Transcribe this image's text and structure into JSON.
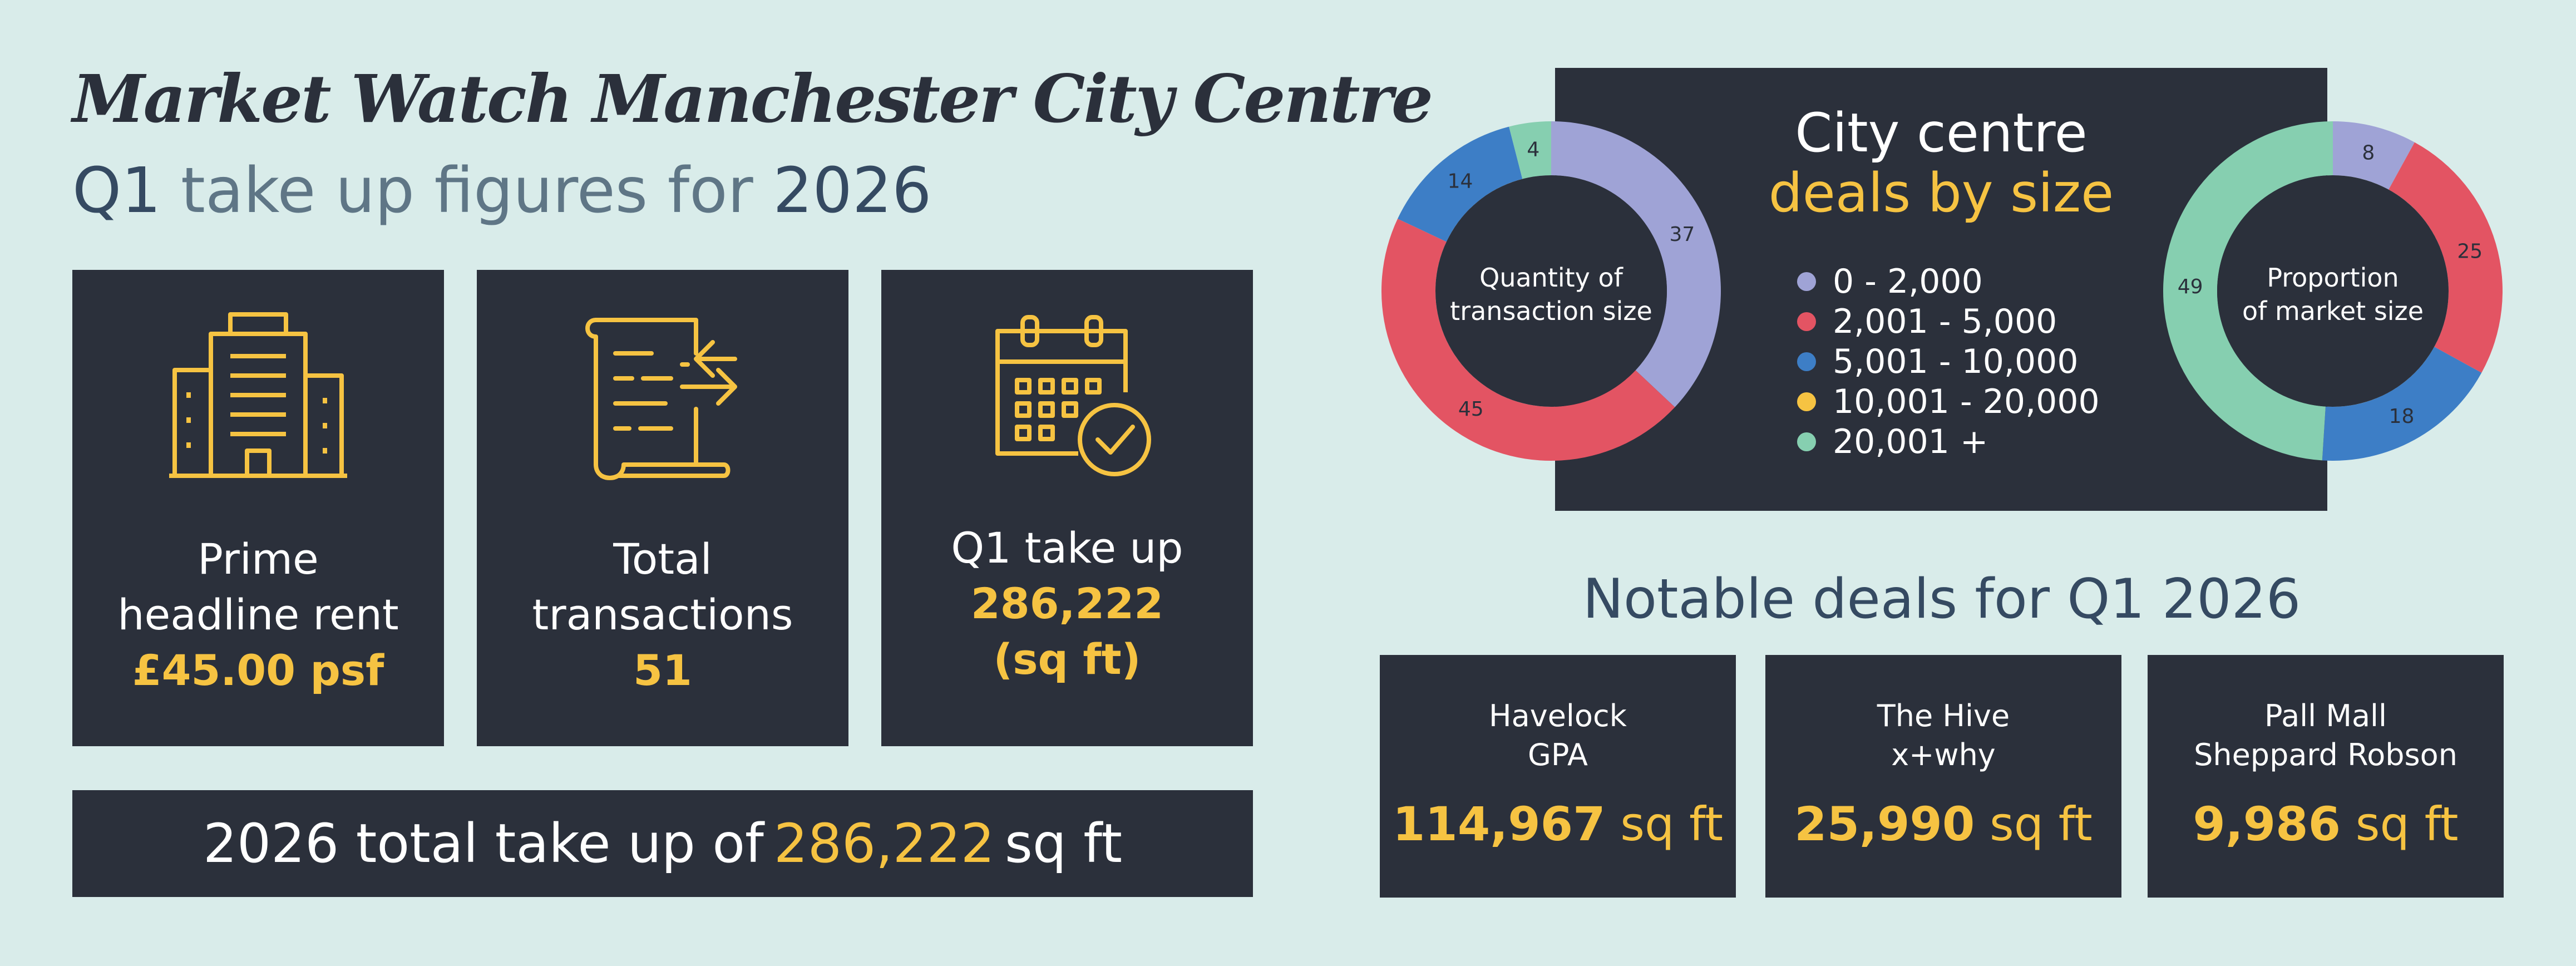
{
  "header": {
    "title": "Market Watch Manchester City Centre",
    "subtitle_q": "Q1",
    "subtitle_mid": " take up figures for ",
    "subtitle_year": "2026"
  },
  "cards": [
    {
      "icon": "office-buildings-icon",
      "line1": "Prime",
      "line2": "headline rent",
      "value": "£45.00 psf"
    },
    {
      "icon": "transactions-document-icon",
      "line1": "Total",
      "line2": "transactions",
      "value": "51"
    },
    {
      "icon": "calendar-check-icon",
      "line1": "Q1 take up",
      "value": "286,222",
      "value2": "(sq ft)"
    }
  ],
  "total_bar": {
    "prefix": "2026 total take up of",
    "value": "286,222",
    "suffix": "sq ft"
  },
  "chart_panel": {
    "title_line1": "City centre",
    "title_line2": "deals by size"
  },
  "chart_data": [
    {
      "type": "pie",
      "title": "Quantity of transaction size",
      "categories": [
        "0 - 2,000",
        "2,001 - 5,000",
        "5,001 - 10,000",
        "10,001 - 20,000",
        "20,001 +"
      ],
      "values": [
        37,
        45,
        14,
        0,
        4
      ],
      "legend_position": "center"
    },
    {
      "type": "pie",
      "title": "Proportion of market size",
      "categories": [
        "0 - 2,000",
        "2,001 - 5,000",
        "5,001 - 10,000",
        "10,001 - 20,000",
        "20,001 +"
      ],
      "values": [
        8,
        25,
        18,
        0,
        49
      ]
    }
  ],
  "legend": [
    {
      "label": "0 - 2,000",
      "color": "#9fa3d6"
    },
    {
      "label": "2,001 - 5,000",
      "color": "#e35463"
    },
    {
      "label": "5,001 - 10,000",
      "color": "#3d7ec6"
    },
    {
      "label": "10,001 - 20,000",
      "color": "#f6c342"
    },
    {
      "label": "20,001 +",
      "color": "#86cfb0"
    }
  ],
  "donut_left": {
    "center_line1": "Quantity of",
    "center_line2": "transaction size"
  },
  "donut_right": {
    "center_line1": "Proportion",
    "center_line2": "of market size"
  },
  "notable": {
    "title": "Notable deals for Q1 2026",
    "deals": [
      {
        "line1": "Havelock",
        "line2": "GPA",
        "size": "114,967",
        "unit": "sq ft"
      },
      {
        "line1": "The Hive",
        "line2": "x+why",
        "size": "25,990",
        "unit": "sq ft"
      },
      {
        "line1": "Pall Mall",
        "line2": "Sheppard Robson",
        "size": "9,986",
        "unit": "sq ft"
      }
    ]
  },
  "colors": {
    "background": "#d9ecea",
    "panel": "#2b303b",
    "accent": "#f6c342",
    "heading": "#354a62",
    "subheading": "#5f7686"
  }
}
